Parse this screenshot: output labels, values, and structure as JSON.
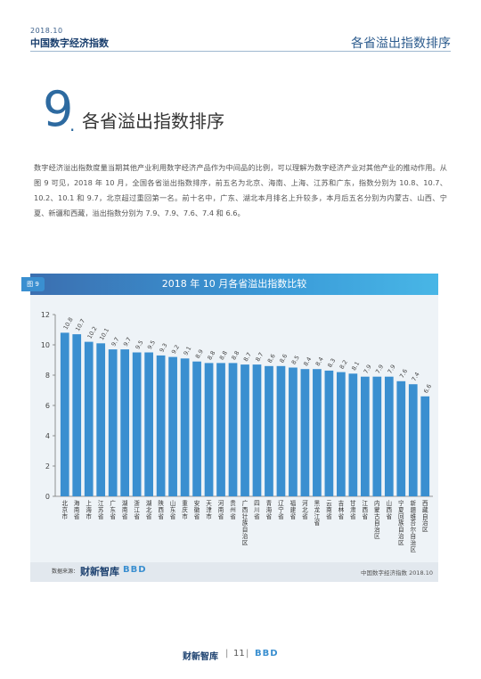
{
  "header": {
    "date": "2018.10",
    "title": "中国数字经济指数",
    "section_name": "各省溢出指数排序"
  },
  "section": {
    "number": "9",
    "dot": ".",
    "title": "各省溢出指数排序"
  },
  "paragraph": "数字经济溢出指数度量当期其他产业利用数字经济产品作为中间品的比例，可以理解为数字经济产业对其他产业的推动作用。从图 9 可见，2018 年 10 月，全国各省溢出指数排序，前五名为北京、海南、上海、江苏和广东，指数分别为 10.8、10.7、10.2、10.1 和 9.7，北京超过重回第一名。前十名中，广东、湖北本月排名上升较多，本月后五名分别为内蒙古、山西、宁夏、新疆和西藏，溢出指数分别为 7.9、7.9、7.6、7.4 和 6.6。",
  "figure": {
    "tag": "图 9",
    "title": "2018 年 10 月各省溢出指数比较"
  },
  "chart_data": {
    "type": "bar",
    "title": "2018 年 10 月各省溢出指数比较",
    "categories": [
      "北京市",
      "海南省",
      "上海市",
      "江苏省",
      "广东省",
      "湖南省",
      "浙江省",
      "湖北省",
      "陕西省",
      "山东省",
      "重庆市",
      "安徽省",
      "天津市",
      "河南省",
      "贵州省",
      "广西壮族自治区",
      "四川省",
      "青海省",
      "辽宁省",
      "福建省",
      "河北省",
      "黑龙江省",
      "云南省",
      "吉林省",
      "甘肃省",
      "江西省",
      "内蒙古自治区",
      "山西省",
      "宁夏回族自治区",
      "新疆维吾尔自治区",
      "西藏自治区"
    ],
    "values": [
      10.8,
      10.7,
      10.2,
      10.1,
      9.7,
      9.7,
      9.5,
      9.5,
      9.3,
      9.2,
      9.1,
      8.9,
      8.8,
      8.8,
      8.8,
      8.7,
      8.7,
      8.6,
      8.6,
      8.5,
      8.4,
      8.4,
      8.3,
      8.2,
      8.1,
      7.9,
      7.9,
      7.9,
      7.6,
      7.4,
      6.6
    ],
    "ylim": [
      0,
      12
    ],
    "yticks": [
      0,
      2,
      4,
      6,
      8,
      10,
      12
    ],
    "bar_color": "#3a8fd0",
    "grid": false
  },
  "footer": {
    "source_label": "数据来源：",
    "source_logo": "财新智库",
    "bbd_logo": "BBD",
    "right_text": "中国数字经济指数 2018.10"
  },
  "page": {
    "logo": "财新智库",
    "separator": "|",
    "number": "11",
    "bbd_logo": "BBD"
  }
}
